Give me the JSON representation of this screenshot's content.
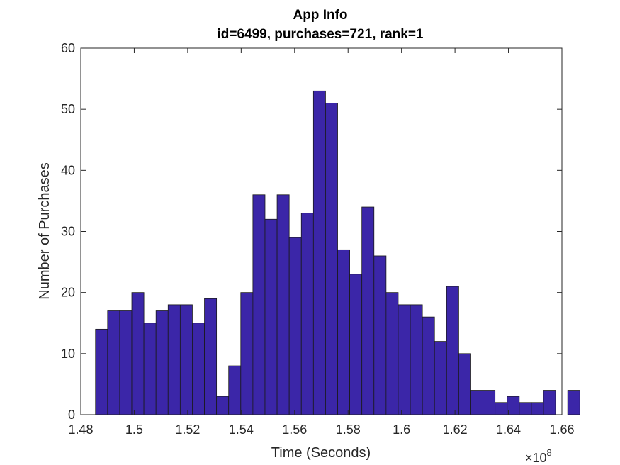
{
  "chart_data": {
    "type": "bar",
    "title": "App Info",
    "subtitle": "id=6499, purchases=721, rank=1",
    "xlabel": "Time (Seconds)",
    "ylabel": "Number of Purchases",
    "x_exponent_label": "×10",
    "x_exponent_power": "8",
    "x_multiplier": 100000000,
    "xlim": [
      1.48,
      1.66
    ],
    "ylim": [
      0,
      60
    ],
    "x_ticks": [
      "1.48",
      "1.5",
      "1.52",
      "1.54",
      "1.56",
      "1.58",
      "1.6",
      "1.62",
      "1.64",
      "1.66"
    ],
    "y_ticks": [
      "0",
      "10",
      "20",
      "30",
      "40",
      "50",
      "60"
    ],
    "bin_start": 1.4855,
    "bin_width": 0.00453,
    "values": [
      14,
      17,
      17,
      20,
      15,
      17,
      18,
      18,
      15,
      19,
      3,
      8,
      20,
      36,
      32,
      36,
      29,
      33,
      53,
      51,
      27,
      23,
      34,
      26,
      20,
      18,
      18,
      16,
      12,
      21,
      10,
      4,
      4,
      2,
      3,
      2,
      2,
      4,
      0,
      4
    ],
    "bar_color": "#3b26a8",
    "edge_color": "#1a1a1a",
    "grid": false
  }
}
